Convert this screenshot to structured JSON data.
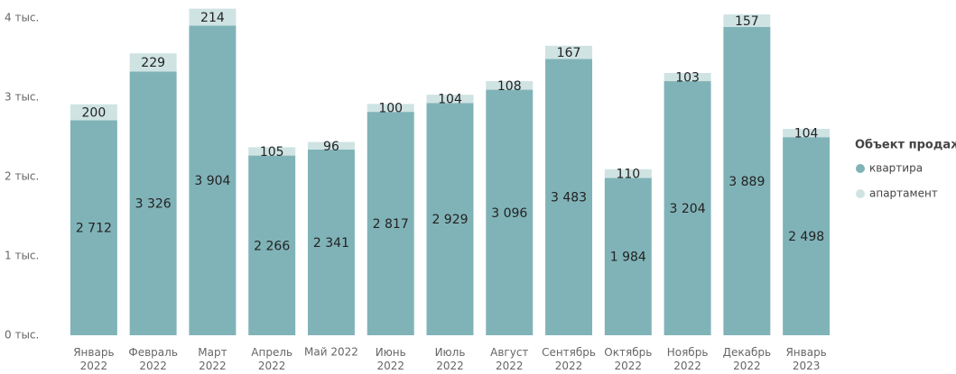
{
  "chart_data": {
    "type": "stacked-bar",
    "categories": [
      "Январь 2022",
      "Февраль 2022",
      "Март 2022",
      "Апрель 2022",
      "Май 2022",
      "Июнь 2022",
      "Июль 2022",
      "Август 2022",
      "Сентябрь 2022",
      "Октябрь 2022",
      "Ноябрь 2022",
      "Декабрь 2022",
      "Январь 2023"
    ],
    "legend_title": "Объект продаж",
    "series": [
      {
        "name": "квартира",
        "color": "#80b3b8",
        "values": [
          2712,
          3326,
          3904,
          2266,
          2341,
          2817,
          2929,
          3096,
          3483,
          1984,
          3204,
          3889,
          2498
        ],
        "value_labels": [
          "2 712",
          "3 326",
          "3 904",
          "2 266",
          "2 341",
          "2 817",
          "2 929",
          "3 096",
          "3 483",
          "1 984",
          "3 204",
          "3 889",
          "2 498"
        ]
      },
      {
        "name": "апартамент",
        "color": "#cfe3e3",
        "values": [
          200,
          229,
          214,
          105,
          96,
          100,
          104,
          108,
          167,
          110,
          103,
          157,
          104
        ]
      }
    ],
    "ylim": [
      0,
      4000
    ],
    "yticks": [
      {
        "value": 0,
        "label": "0 тыс."
      },
      {
        "value": 1000,
        "label": "1 тыс."
      },
      {
        "value": 2000,
        "label": "2 тыс."
      },
      {
        "value": 3000,
        "label": "3 тыс."
      },
      {
        "value": 4000,
        "label": "4 тыс."
      }
    ],
    "grid": false
  }
}
